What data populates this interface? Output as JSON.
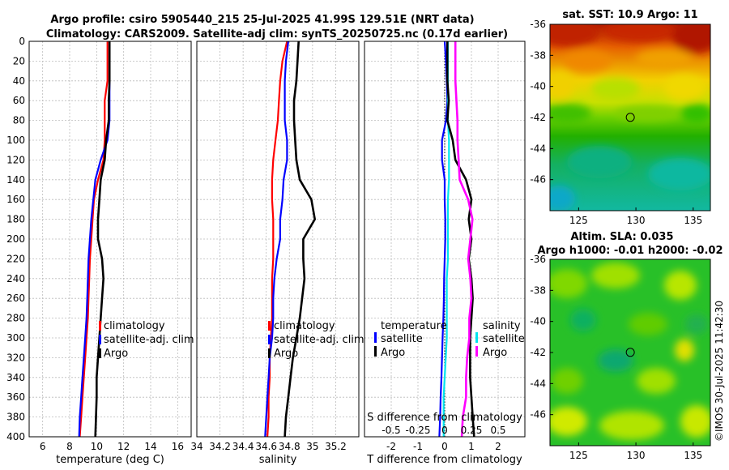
{
  "chart_data": [
    {
      "type": "line",
      "title": "Argo profile: csiro 5905440_215 25-Jul-2025 41.99S 129.51E (NRT data)",
      "subtitle": "Climatology: CARS2009. Satellite-adj clim: synTS_20250725.nc (0.17d earlier)",
      "xlabel": "temperature (deg C)",
      "ylabel": "",
      "xlim": [
        5,
        17
      ],
      "ylim": [
        400,
        0
      ],
      "xticks": [
        "6",
        "8",
        "10",
        "12",
        "14",
        "16"
      ],
      "yticks": [
        "0",
        "20",
        "40",
        "60",
        "80",
        "100",
        "120",
        "140",
        "160",
        "180",
        "200",
        "220",
        "240",
        "260",
        "280",
        "300",
        "320",
        "340",
        "360",
        "380",
        "400"
      ],
      "depth": [
        0,
        20,
        40,
        60,
        80,
        100,
        120,
        140,
        160,
        180,
        200,
        220,
        240,
        260,
        280,
        300,
        320,
        340,
        360,
        380,
        400
      ],
      "series": [
        {
          "name": "climatology",
          "color": "#ff0000",
          "values": [
            10.8,
            10.8,
            10.8,
            10.6,
            10.6,
            10.6,
            10.5,
            10.1,
            9.8,
            9.7,
            9.6,
            9.5,
            9.45,
            9.4,
            9.35,
            9.25,
            9.15,
            9.05,
            8.95,
            8.85,
            8.75
          ]
        },
        {
          "name": "satellite-adj. clim",
          "color": "#0000ff",
          "values": [
            10.95,
            10.95,
            10.95,
            10.95,
            10.95,
            10.8,
            10.3,
            9.9,
            9.75,
            9.6,
            9.5,
            9.4,
            9.35,
            9.3,
            9.25,
            9.15,
            9.05,
            8.95,
            8.85,
            8.75,
            8.7
          ]
        },
        {
          "name": "Argo",
          "color": "#000000",
          "values": [
            10.95,
            10.95,
            10.95,
            10.9,
            10.9,
            10.7,
            10.6,
            10.3,
            10.2,
            10.1,
            10.1,
            10.4,
            10.5,
            10.4,
            10.3,
            10.2,
            10.1,
            10.0,
            10.0,
            9.95,
            9.9
          ]
        }
      ],
      "legend": [
        "climatology",
        "satellite-adj. clim",
        "Argo"
      ],
      "legend_position": "lower-right"
    },
    {
      "type": "line",
      "xlabel": "salinity",
      "xlim": [
        34.0,
        35.4
      ],
      "ylim": [
        400,
        0
      ],
      "xticks": [
        "34",
        "34.2",
        "34.4",
        "34.6",
        "34.8",
        "35",
        "35.2"
      ],
      "depth": [
        0,
        20,
        40,
        60,
        80,
        100,
        120,
        140,
        160,
        180,
        200,
        220,
        240,
        260,
        280,
        300,
        320,
        340,
        360,
        380,
        400
      ],
      "series": [
        {
          "name": "climatology",
          "color": "#ff0000",
          "values": [
            34.78,
            34.74,
            34.72,
            34.71,
            34.7,
            34.68,
            34.66,
            34.65,
            34.65,
            34.66,
            34.66,
            34.66,
            34.65,
            34.65,
            34.65,
            34.64,
            34.63,
            34.63,
            34.62,
            34.62,
            34.61
          ]
        },
        {
          "name": "satellite-adj. clim",
          "color": "#0000ff",
          "values": [
            34.79,
            34.77,
            34.76,
            34.76,
            34.76,
            34.78,
            34.78,
            34.75,
            34.74,
            34.72,
            34.72,
            34.69,
            34.67,
            34.66,
            34.66,
            34.65,
            34.63,
            34.62,
            34.61,
            34.6,
            34.59
          ]
        },
        {
          "name": "Argo",
          "color": "#000000",
          "values": [
            34.88,
            34.87,
            34.86,
            34.84,
            34.84,
            34.85,
            34.86,
            34.89,
            34.99,
            35.02,
            34.92,
            34.92,
            34.93,
            34.91,
            34.89,
            34.86,
            34.83,
            34.81,
            34.79,
            34.77,
            34.76
          ]
        }
      ],
      "legend": [
        "climatology",
        "satellite-adj. clim",
        "Argo"
      ],
      "legend_position": "lower-right"
    },
    {
      "type": "line",
      "xlabel": "T difference from climatology",
      "xlabel2": "S difference from climatology",
      "xlim": [
        -3,
        3
      ],
      "ylim": [
        400,
        0
      ],
      "xticks": [
        "-2",
        "-1",
        "0",
        "1",
        "2"
      ],
      "xticks2": [
        "-0.5",
        "-0.25",
        "0",
        "0.25",
        "0.5"
      ],
      "depth": [
        0,
        20,
        40,
        60,
        80,
        100,
        120,
        140,
        160,
        180,
        200,
        220,
        240,
        260,
        280,
        300,
        320,
        340,
        360,
        380,
        400
      ],
      "series": [
        {
          "name": "satellite",
          "axis": "T",
          "color": "#0000ff",
          "values": [
            0.0,
            0.05,
            0.08,
            0.1,
            0.05,
            -0.1,
            -0.1,
            0.0,
            0.0,
            0.02,
            0.02,
            0.0,
            -0.02,
            -0.03,
            -0.05,
            -0.08,
            -0.1,
            -0.12,
            -0.15,
            -0.17,
            -0.2
          ]
        },
        {
          "name": "satellite",
          "axis": "S",
          "color": "#00e5ee",
          "values": [
            0.03,
            0.03,
            0.03,
            0.03,
            0.03,
            0.04,
            0.04,
            0.04,
            0.03,
            0.03,
            0.03,
            0.03,
            0.02,
            0.02,
            0.02,
            0.02,
            0.01,
            0.0,
            -0.01,
            -0.01,
            -0.01
          ]
        },
        {
          "name": "Argo",
          "axis": "T",
          "color": "#000000",
          "values": [
            0.1,
            0.1,
            0.1,
            0.15,
            0.1,
            0.3,
            0.4,
            0.8,
            1.0,
            0.9,
            1.0,
            0.9,
            1.0,
            1.05,
            1.0,
            0.95,
            0.95,
            0.95,
            1.0,
            1.05,
            1.1
          ]
        },
        {
          "name": "Argo",
          "axis": "S",
          "color": "#ff00ff",
          "values": [
            0.1,
            0.1,
            0.1,
            0.11,
            0.12,
            0.12,
            0.13,
            0.14,
            0.22,
            0.26,
            0.24,
            0.22,
            0.24,
            0.25,
            0.23,
            0.23,
            0.21,
            0.2,
            0.2,
            0.17,
            0.16
          ]
        }
      ],
      "legend_left_title": "temperature",
      "legend_left": [
        "satellite",
        "Argo"
      ],
      "legend_right_title": "salinity",
      "legend_right": [
        "satellite",
        "Argo"
      ],
      "legend_position": "lower"
    },
    {
      "type": "heatmap",
      "title": "sat. SST: 10.9 Argo: 11",
      "xlim": [
        122.5,
        136.5
      ],
      "ylim": [
        -48,
        -36
      ],
      "xticks": [
        "125",
        "130",
        "135"
      ],
      "yticks": [
        "-36",
        "-38",
        "-40",
        "-42",
        "-44",
        "-46"
      ],
      "marker": {
        "x": 129.51,
        "y": -41.99
      }
    },
    {
      "type": "heatmap",
      "title": "Altim. SLA: 0.035",
      "subtitle": "Argo h1000: -0.01 h2000: -0.02",
      "xlim": [
        122.5,
        136.5
      ],
      "ylim": [
        -48,
        -36
      ],
      "xticks": [
        "125",
        "130",
        "135"
      ],
      "yticks": [
        "-36",
        "-38",
        "-40",
        "-42",
        "-44",
        "-46"
      ],
      "marker": {
        "x": 129.51,
        "y": -41.99
      }
    }
  ],
  "credit": "©IMOS 30-Jul-2025 11:42:30"
}
